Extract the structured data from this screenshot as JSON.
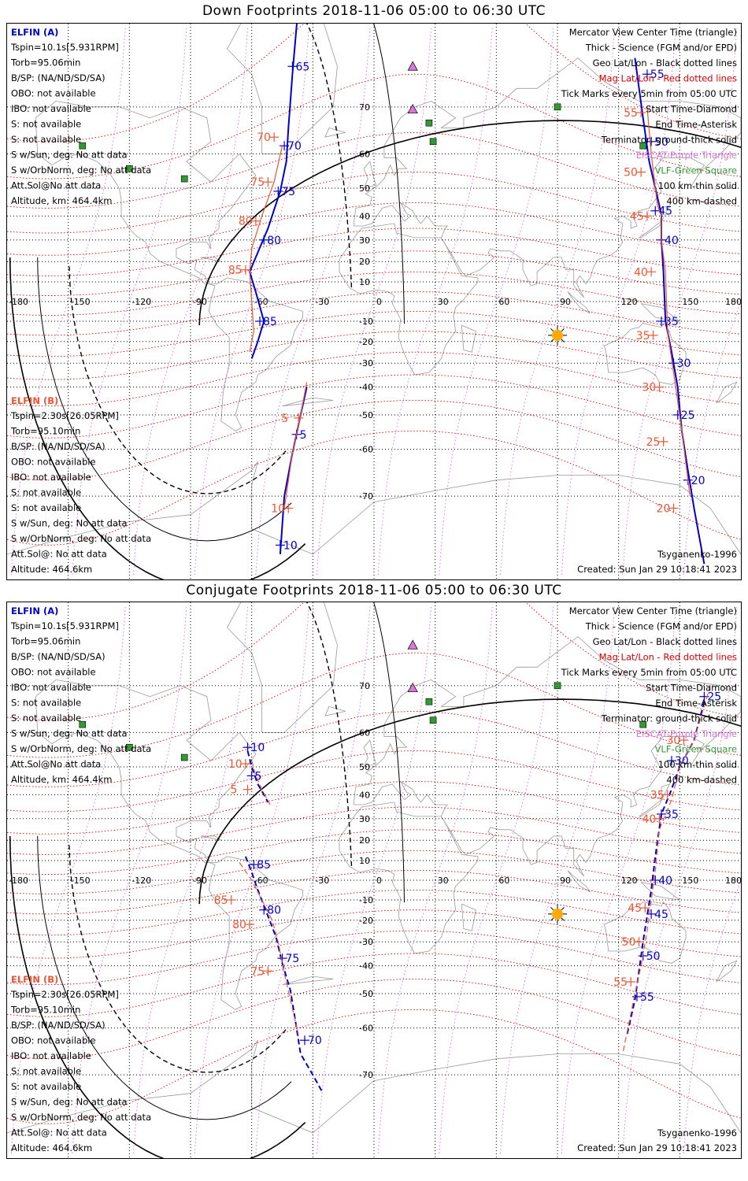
{
  "colors": {
    "elfin_a": "#0000cc",
    "elfin_b": "#ee5533",
    "mag_grid": "#dd0000",
    "eiscat": "#dd77dd",
    "vlf": "#339933",
    "sun": "#ffaa00",
    "coast": "#999999"
  },
  "common": {
    "xticks": [
      "-180",
      "-150",
      "-120",
      "-90",
      "-60",
      "-30",
      "0",
      "30",
      "60",
      "90",
      "120",
      "150",
      "180"
    ],
    "yticks": [
      "70",
      "60",
      "50",
      "40",
      "30",
      "20",
      "10",
      "-10",
      "-20",
      "-30",
      "-40",
      "-50",
      "-60",
      "-70"
    ],
    "legend": [
      "Mercator View Center Time (triangle)",
      "Thick - Science (FGM and/or EPD)",
      "Geo Lat/Lon - Black dotted lines",
      "Mag Lat/Lon - Red dotted lines",
      "Tick Marks every 5min from 05:00 UTC",
      "Start Time-Diamond",
      "End Time-Asterisk",
      "Terminator: ground-thick solid",
      "EISCAT-Purple Triangle",
      "VLF-Green Square",
      "100 km-thin solid",
      "400 km-dashed"
    ],
    "elfin_a": {
      "name": "ELFIN (A)",
      "lines": [
        "Tspin=10.1s[5.931RPM]",
        "Torb=95.06min",
        "B/SP: (NA/ND/SD/SA)",
        "OBO: not available",
        "IBO: not available",
        "S: not available",
        "S: not available",
        "S w/Sun, deg: No att data",
        "S w/OrbNorm, deg: No att data",
        "Att.Sol@No att data",
        "Altitude, km: 464.4km"
      ]
    },
    "elfin_b": {
      "name": "ELFIN (B)",
      "lines": [
        "Tspin=2.30s[26.05RPM]",
        "Torb=95.10min",
        "B/SP: (NA/ND/SD/SA)",
        "OBO: not available",
        "IBO: not available",
        "S: not available",
        "S: not available",
        "S w/Sun, deg: No att data",
        "S w/OrbNorm, deg: No att data",
        "Att.Sol@: No att data",
        "Altitude: 464.6km"
      ]
    },
    "model": "Tsyganenko-1996",
    "created": "Created: Sun Jan 29 10:18:41 2023"
  },
  "panels": [
    {
      "title": "Down Footprints 2018-11-06 05:00 to 06:30 UTC",
      "chart_data": {
        "type": "line",
        "projection": "mercator",
        "xlim": [
          -180,
          180
        ],
        "ylim": [
          -80,
          80
        ],
        "xlabel": "",
        "ylabel": "",
        "sun": {
          "lon": 90,
          "lat": -17
        },
        "series": [
          {
            "name": "ELFIN (A)",
            "style": "solid",
            "color": "#0000cc",
            "points": [
              [
                -33,
                -40
              ],
              [
                -36,
                -50
              ],
              [
                -40,
                -61
              ],
              [
                -44,
                -70
              ],
              [
                -46,
                -78
              ]
            ],
            "ticks": [
              {
                "label": "5",
                "lon": -38,
                "lat": -56
              },
              {
                "label": "10",
                "lon": -46,
                "lat": -77
              }
            ]
          },
          {
            "name": "ELFIN (B)",
            "style": "solid",
            "color": "#ee5533",
            "points": [
              [
                -33,
                -38
              ],
              [
                -36,
                -50
              ],
              [
                -40,
                -61
              ],
              [
                -44,
                -72
              ]
            ],
            "ticks": [
              {
                "label": "5",
                "lon": -37,
                "lat": -51
              },
              {
                "label": "10",
                "lon": -42,
                "lat": -72
              }
            ]
          },
          {
            "name": "ELFIN (A)",
            "style": "solid",
            "color": "#0000cc",
            "points": [
              [
                -37,
                82
              ],
              [
                -40,
                75
              ],
              [
                -42,
                66
              ],
              [
                -43,
                58
              ],
              [
                -46,
                49
              ],
              [
                -52,
                35
              ],
              [
                -58,
                22
              ],
              [
                -61,
                15
              ],
              [
                -58,
                5
              ],
              [
                -54,
                -10
              ],
              [
                -57,
                -20
              ],
              [
                -60,
                -28
              ]
            ],
            "ticks": [
              {
                "label": "65",
                "lon": -40,
                "lat": 76
              },
              {
                "label": "70",
                "lon": -44,
                "lat": 62
              },
              {
                "label": "75",
                "lon": -47,
                "lat": 49
              },
              {
                "label": "80",
                "lon": -54,
                "lat": 30
              },
              {
                "label": "85",
                "lon": -56,
                "lat": -10
              }
            ]
          },
          {
            "name": "ELFIN (B)",
            "style": "solid",
            "color": "#ee5533",
            "points": [
              [
                -45,
                62
              ],
              [
                -49,
                52
              ],
              [
                -55,
                40
              ],
              [
                -60,
                26
              ],
              [
                -61,
                15
              ],
              [
                -59,
                -15
              ],
              [
                -61,
                -25
              ]
            ],
            "ticks": [
              {
                "label": "70",
                "lon": -49,
                "lat": 64
              },
              {
                "label": "75",
                "lon": -52,
                "lat": 52
              },
              {
                "label": "80",
                "lon": -58,
                "lat": 38
              },
              {
                "label": "85",
                "lon": -63,
                "lat": 16
              }
            ]
          },
          {
            "name": "ELFIN (A)",
            "style": "solid",
            "color": "#0000cc",
            "points": [
              [
                128,
                77
              ],
              [
                132,
                68
              ],
              [
                135,
                58
              ],
              [
                138,
                50
              ],
              [
                140,
                44
              ],
              [
                141,
                40
              ],
              [
                141,
                30
              ],
              [
                142,
                15
              ],
              [
                143,
                -10
              ],
              [
                146,
                -25
              ],
              [
                149,
                -40
              ],
              [
                151,
                -55
              ],
              [
                154,
                -65
              ],
              [
                157,
                -72
              ],
              [
                162,
                -79
              ]
            ],
            "ticks": [
              {
                "label": "55",
                "lon": 134,
                "lat": 75
              },
              {
                "label": "50",
                "lon": 136,
                "lat": 63
              },
              {
                "label": "45",
                "lon": 138,
                "lat": 42
              },
              {
                "label": "40",
                "lon": 141,
                "lat": 30
              },
              {
                "label": "35",
                "lon": 141,
                "lat": -10
              },
              {
                "label": "30",
                "lon": 147,
                "lat": -30
              },
              {
                "label": "25",
                "lon": 149,
                "lat": -50
              },
              {
                "label": "20",
                "lon": 154,
                "lat": -67
              }
            ]
          },
          {
            "name": "ELFIN (B)",
            "style": "solid",
            "color": "#ee5533",
            "points": [
              [
                134,
                70
              ],
              [
                136,
                60
              ],
              [
                138,
                50
              ],
              [
                139,
                44
              ],
              [
                141,
                40
              ],
              [
                141,
                30
              ],
              [
                143,
                15
              ],
              [
                144,
                -15
              ],
              [
                148,
                -40
              ],
              [
                151,
                -55
              ],
              [
                155,
                -70
              ]
            ],
            "ticks": [
              {
                "label": "55",
                "lon": 131,
                "lat": 69
              },
              {
                "label": "50",
                "lon": 131,
                "lat": 55
              },
              {
                "label": "45",
                "lon": 134,
                "lat": 40
              },
              {
                "label": "40",
                "lon": 136,
                "lat": 15
              },
              {
                "label": "35",
                "lon": 137,
                "lat": -17
              },
              {
                "label": "30",
                "lon": 140,
                "lat": -40
              },
              {
                "label": "25",
                "lon": 142,
                "lat": -58
              },
              {
                "label": "20",
                "lon": 147,
                "lat": -72
              }
            ]
          }
        ]
      }
    },
    {
      "title": "Conjugate Footprints 2018-11-06 05:00 to 06:30 UTC",
      "chart_data": {
        "type": "line",
        "projection": "mercator",
        "xlim": [
          -180,
          180
        ],
        "ylim": [
          -80,
          80
        ],
        "xlabel": "",
        "ylabel": "",
        "sun": {
          "lon": 90,
          "lat": -17
        },
        "series": [
          {
            "name": "ELFIN (A)",
            "style": "dashed",
            "color": "#0000cc",
            "points": [
              [
                -62,
                55
              ],
              [
                -60,
                50
              ],
              [
                -57,
                44
              ],
              [
                -54,
                40
              ],
              [
                -52,
                37
              ]
            ],
            "ticks": [
              {
                "label": "10",
                "lon": -62,
                "lat": 56
              },
              {
                "label": "5",
                "lon": -60,
                "lat": 47
              }
            ]
          },
          {
            "name": "ELFIN (B)",
            "style": "dashed",
            "color": "#ee5533",
            "points": [
              [
                -60,
                52
              ],
              [
                -58,
                47
              ],
              [
                -55,
                42
              ],
              [
                -51,
                36
              ]
            ],
            "ticks": [
              {
                "label": "10",
                "lon": -63,
                "lat": 51
              },
              {
                "label": "5",
                "lon": -62,
                "lat": 42
              }
            ]
          },
          {
            "name": "ELFIN (A)",
            "style": "dashed",
            "color": "#0000cc",
            "points": [
              [
                -63,
                12
              ],
              [
                -60,
                4
              ],
              [
                -57,
                -5
              ],
              [
                -52,
                -18
              ],
              [
                -48,
                -28
              ],
              [
                -45,
                -39
              ],
              [
                -41,
                -49
              ],
              [
                -38,
                -60
              ],
              [
                -36,
                -66
              ],
              [
                -30,
                -70
              ],
              [
                -25,
                -73
              ]
            ],
            "ticks": [
              {
                "label": "85",
                "lon": -59,
                "lat": 8
              },
              {
                "label": "80",
                "lon": -54,
                "lat": -15
              },
              {
                "label": "75",
                "lon": -45,
                "lat": -37
              },
              {
                "label": "70",
                "lon": -34,
                "lat": -63
              }
            ]
          },
          {
            "name": "ELFIN (B)",
            "style": "dashed",
            "color": "#ee5533",
            "points": [
              [
                -66,
                9
              ],
              [
                -60,
                0
              ],
              [
                -55,
                -10
              ],
              [
                -50,
                -20
              ],
              [
                -47,
                -30
              ],
              [
                -44,
                -43
              ],
              [
                -41,
                -52
              ],
              [
                -37,
                -62
              ]
            ],
            "ticks": [
              {
                "label": "85",
                "lon": -70,
                "lat": -10
              },
              {
                "label": "80",
                "lon": -61,
                "lat": -22
              },
              {
                "label": "75",
                "lon": -52,
                "lat": -42
              }
            ]
          },
          {
            "name": "ELFIN (A)",
            "style": "dashed",
            "color": "#0000cc",
            "points": [
              [
                162,
                67
              ],
              [
                157,
                58
              ],
              [
                150,
                50
              ],
              [
                145,
                40
              ],
              [
                141,
                32
              ],
              [
                138,
                12
              ],
              [
                136,
                -5
              ],
              [
                134,
                -18
              ],
              [
                132,
                -30
              ],
              [
                130,
                -42
              ],
              [
                128,
                -52
              ],
              [
                124,
                -62
              ]
            ],
            "ticks": [
              {
                "label": "25",
                "lon": 162,
                "lat": 68
              },
              {
                "label": "30",
                "lon": 146,
                "lat": 52
              },
              {
                "label": "35",
                "lon": 141,
                "lat": 32
              },
              {
                "label": "40",
                "lon": 138,
                "lat": 0
              },
              {
                "label": "45",
                "lon": 136,
                "lat": -17
              },
              {
                "label": "50",
                "lon": 132,
                "lat": -36
              },
              {
                "label": "55",
                "lon": 129,
                "lat": -51
              }
            ]
          },
          {
            "name": "ELFIN (B)",
            "style": "dashed",
            "color": "#ee5533",
            "points": [
              [
                165,
                70
              ],
              [
                157,
                58
              ],
              [
                150,
                50
              ],
              [
                146,
                38
              ],
              [
                140,
                25
              ],
              [
                138,
                5
              ],
              [
                136,
                -10
              ],
              [
                134,
                -25
              ],
              [
                131,
                -40
              ],
              [
                128,
                -50
              ],
              [
                122,
                -66
              ]
            ],
            "ticks": [
              {
                "label": "30",
                "lon": 152,
                "lat": 58
              },
              {
                "label": "35",
                "lon": 144,
                "lat": 40
              },
              {
                "label": "40",
                "lon": 140,
                "lat": 30
              },
              {
                "label": "45",
                "lon": 133,
                "lat": -14
              },
              {
                "label": "50",
                "lon": 130,
                "lat": -30
              },
              {
                "label": "55",
                "lon": 126,
                "lat": -46
              }
            ]
          }
        ]
      }
    }
  ]
}
